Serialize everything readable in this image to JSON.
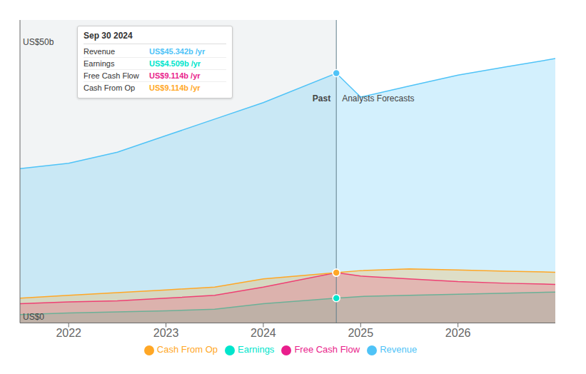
{
  "chart_data": {
    "type": "area",
    "x": [
      2021.5,
      2022.0,
      2022.5,
      2023.0,
      2023.5,
      2024.0,
      2024.75,
      2025.0,
      2025.5,
      2026.0,
      2026.5,
      2027.0
    ],
    "series": [
      {
        "name": "Revenue",
        "color": "#4fc3f7",
        "values": [
          28,
          29,
          31,
          34,
          37,
          40,
          45.342,
          41,
          43,
          45,
          46.5,
          48
        ]
      },
      {
        "name": "Earnings",
        "color": "#00e5cc",
        "values": [
          1.5,
          1.8,
          2.0,
          2.2,
          2.5,
          3.5,
          4.509,
          4.8,
          5.0,
          5.2,
          5.4,
          5.6
        ]
      },
      {
        "name": "Free Cash Flow",
        "color": "#e91e8c",
        "values": [
          3.5,
          3.8,
          4.0,
          4.5,
          5.0,
          6.5,
          9.114,
          8.5,
          8.0,
          7.5,
          7.2,
          7.0
        ]
      },
      {
        "name": "Cash From Op",
        "color": "#ffa726",
        "values": [
          4.5,
          5.0,
          5.5,
          6.0,
          6.5,
          8.0,
          9.114,
          9.5,
          9.8,
          9.6,
          9.4,
          9.2
        ]
      }
    ],
    "xlim": [
      2021.5,
      2027.0
    ],
    "xticks": [
      2022,
      2023,
      2024,
      2025,
      2026
    ],
    "ylim": [
      0,
      55
    ],
    "yticks": [
      0,
      12.5,
      25,
      37.5,
      50
    ],
    "grid": true,
    "tick_labels": "x",
    "legend": "bottom",
    "annotations": [
      {
        "text": "US$50b",
        "x": 2021.5,
        "y": 50
      },
      {
        "text": "US$0",
        "x": 2021.5,
        "y": 0
      },
      {
        "text": "Past",
        "x": 2024.75,
        "y": 40.7
      },
      {
        "text": "Analysts Forecasts",
        "x": 2024.75,
        "y": 40.7
      }
    ],
    "tooltip": {
      "title": "Sep 30 2024",
      "x": 2024.75,
      "rows": [
        {
          "label": "Revenue",
          "value": "US$45.342b /yr",
          "color": "#4fc3f7"
        },
        {
          "label": "Earnings",
          "value": "US$4.509b /yr",
          "color": "#00e5cc"
        },
        {
          "label": "Free Cash Flow",
          "value": "US$9.114b /yr",
          "color": "#e91e8c"
        },
        {
          "label": "Cash From Op",
          "value": "US$9.114b /yr",
          "color": "#ffa726"
        }
      ]
    }
  }
}
